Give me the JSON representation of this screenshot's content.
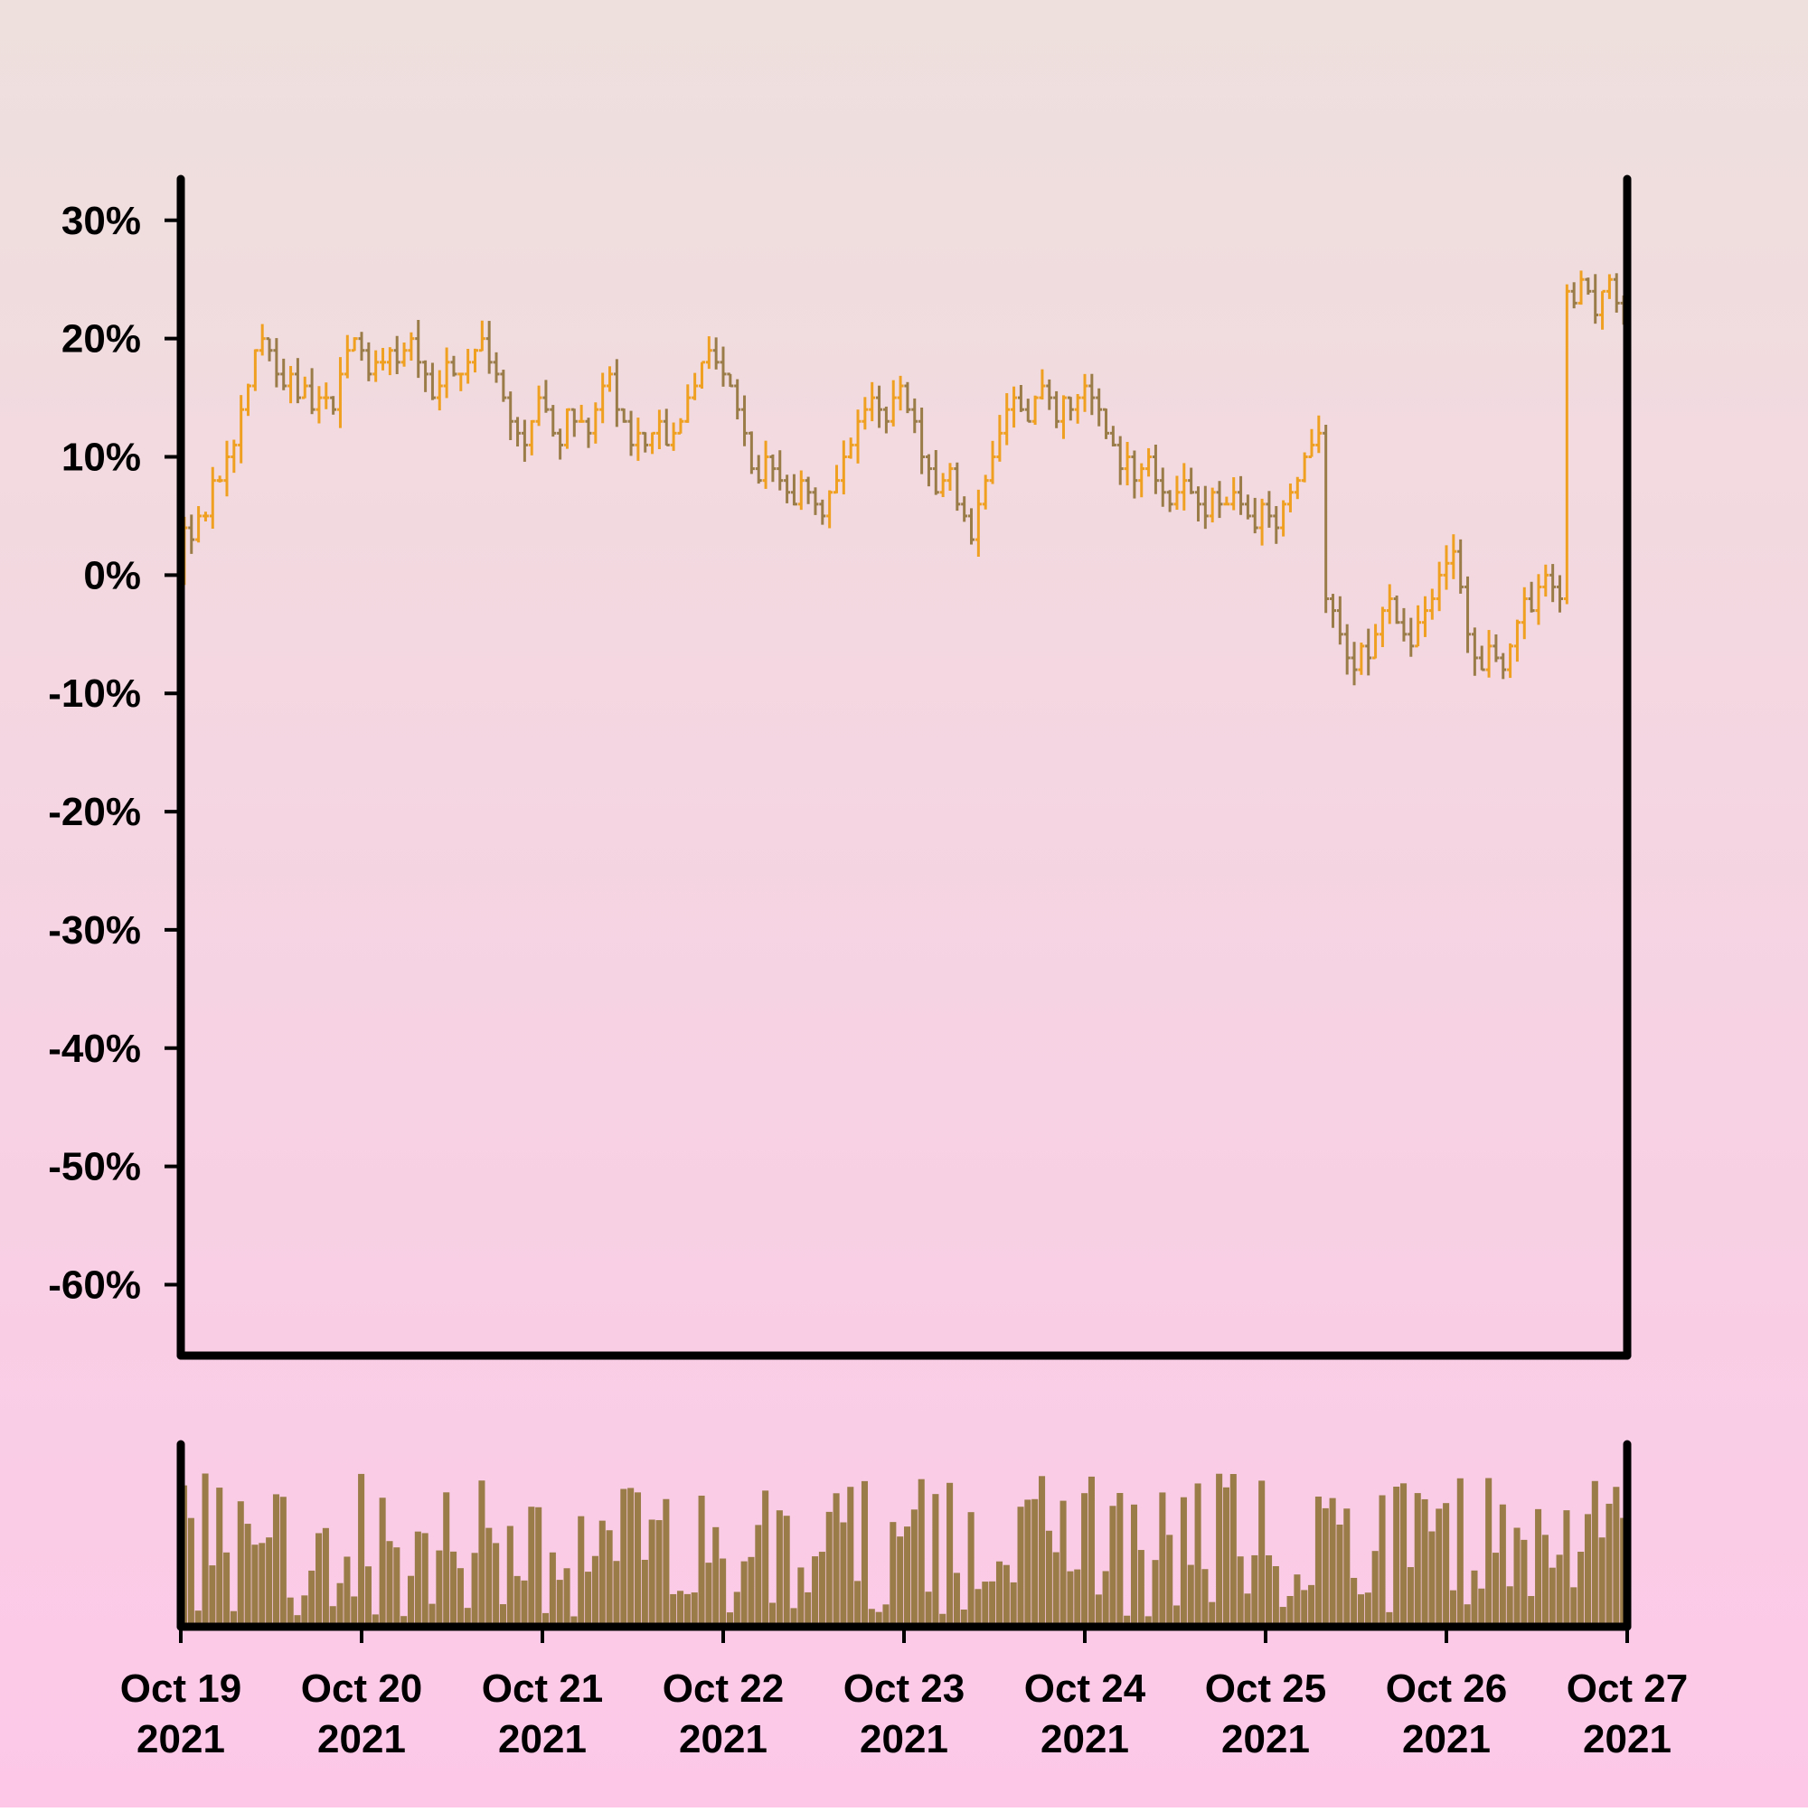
{
  "chart_data": {
    "type": "ohlc",
    "colors": {
      "up": "#f0a020",
      "down": "#9a7c48",
      "volume": "#9a7c48",
      "axis": "#000000",
      "background_top": "#eee0dd",
      "background_bottom": "#fdc8e8"
    },
    "y_axis": {
      "ylim": [
        -66,
        33.5
      ],
      "ticks": [
        30,
        20,
        10,
        0,
        -10,
        -20,
        -30,
        -40,
        -50,
        -60
      ],
      "tick_labels": [
        "30%",
        "20%",
        "10%",
        "0%",
        "-10%",
        "-20%",
        "-30%",
        "-40%",
        "-50%",
        "-60%"
      ]
    },
    "x_axis": {
      "range": [
        "2021-10-19",
        "2021-10-27"
      ],
      "tick_labels": [
        {
          "line1": "Oct 19",
          "line2": "2021"
        },
        {
          "line1": "Oct 20",
          "line2": "2021"
        },
        {
          "line1": "Oct 21",
          "line2": "2021"
        },
        {
          "line1": "Oct 22",
          "line2": "2021"
        },
        {
          "line1": "Oct 23",
          "line2": "2021"
        },
        {
          "line1": "Oct 24",
          "line2": "2021"
        },
        {
          "line1": "Oct 25",
          "line2": "2021"
        },
        {
          "line1": "Oct 26",
          "line2": "2021"
        },
        {
          "line1": "Oct 27",
          "line2": "2021"
        }
      ]
    },
    "bars_per_day": 24,
    "close": [
      4,
      3,
      5,
      5,
      8,
      8,
      10,
      11,
      14,
      16,
      19,
      20,
      19,
      17,
      16,
      17,
      15,
      16,
      14,
      15,
      15,
      14,
      17,
      19,
      20,
      19,
      17,
      18,
      18,
      19,
      18,
      19,
      20,
      18,
      17,
      15,
      16,
      18,
      17,
      17,
      18,
      19,
      20,
      18,
      17,
      15,
      13,
      12,
      11,
      13,
      15,
      14,
      12,
      11,
      14,
      13,
      13,
      12,
      14,
      16,
      17,
      14,
      13,
      11,
      12,
      11,
      12,
      13,
      11,
      12,
      13,
      15,
      16,
      18,
      19,
      18,
      17,
      16,
      14,
      12,
      9,
      8,
      10,
      9,
      8,
      7,
      6,
      8,
      7,
      6,
      5,
      7,
      8,
      10,
      11,
      13,
      14,
      15,
      14,
      13,
      15,
      16,
      14,
      13,
      10,
      9,
      7,
      8,
      9,
      6,
      5,
      3,
      6,
      8,
      10,
      12,
      14,
      15,
      14,
      13,
      15,
      16,
      15,
      13,
      15,
      14,
      15,
      16,
      15,
      14,
      12,
      11,
      9,
      10,
      8,
      9,
      10,
      8,
      7,
      6,
      7,
      8,
      7,
      6,
      5,
      7,
      6,
      6,
      7,
      6,
      5,
      4,
      6,
      5,
      4,
      6,
      7,
      8,
      10,
      11,
      12,
      -2,
      -3,
      -5,
      -7,
      -8,
      -6,
      -7,
      -5,
      -3,
      -2,
      -4,
      -5,
      -6,
      -4,
      -3,
      -2,
      0,
      1,
      2,
      -1,
      -5,
      -7,
      -8,
      -6,
      -7,
      -8,
      -6,
      -4,
      -2,
      -3,
      -1,
      0,
      -1,
      -2,
      24,
      23,
      25,
      24,
      22,
      24,
      25,
      23,
      22
    ]
  }
}
